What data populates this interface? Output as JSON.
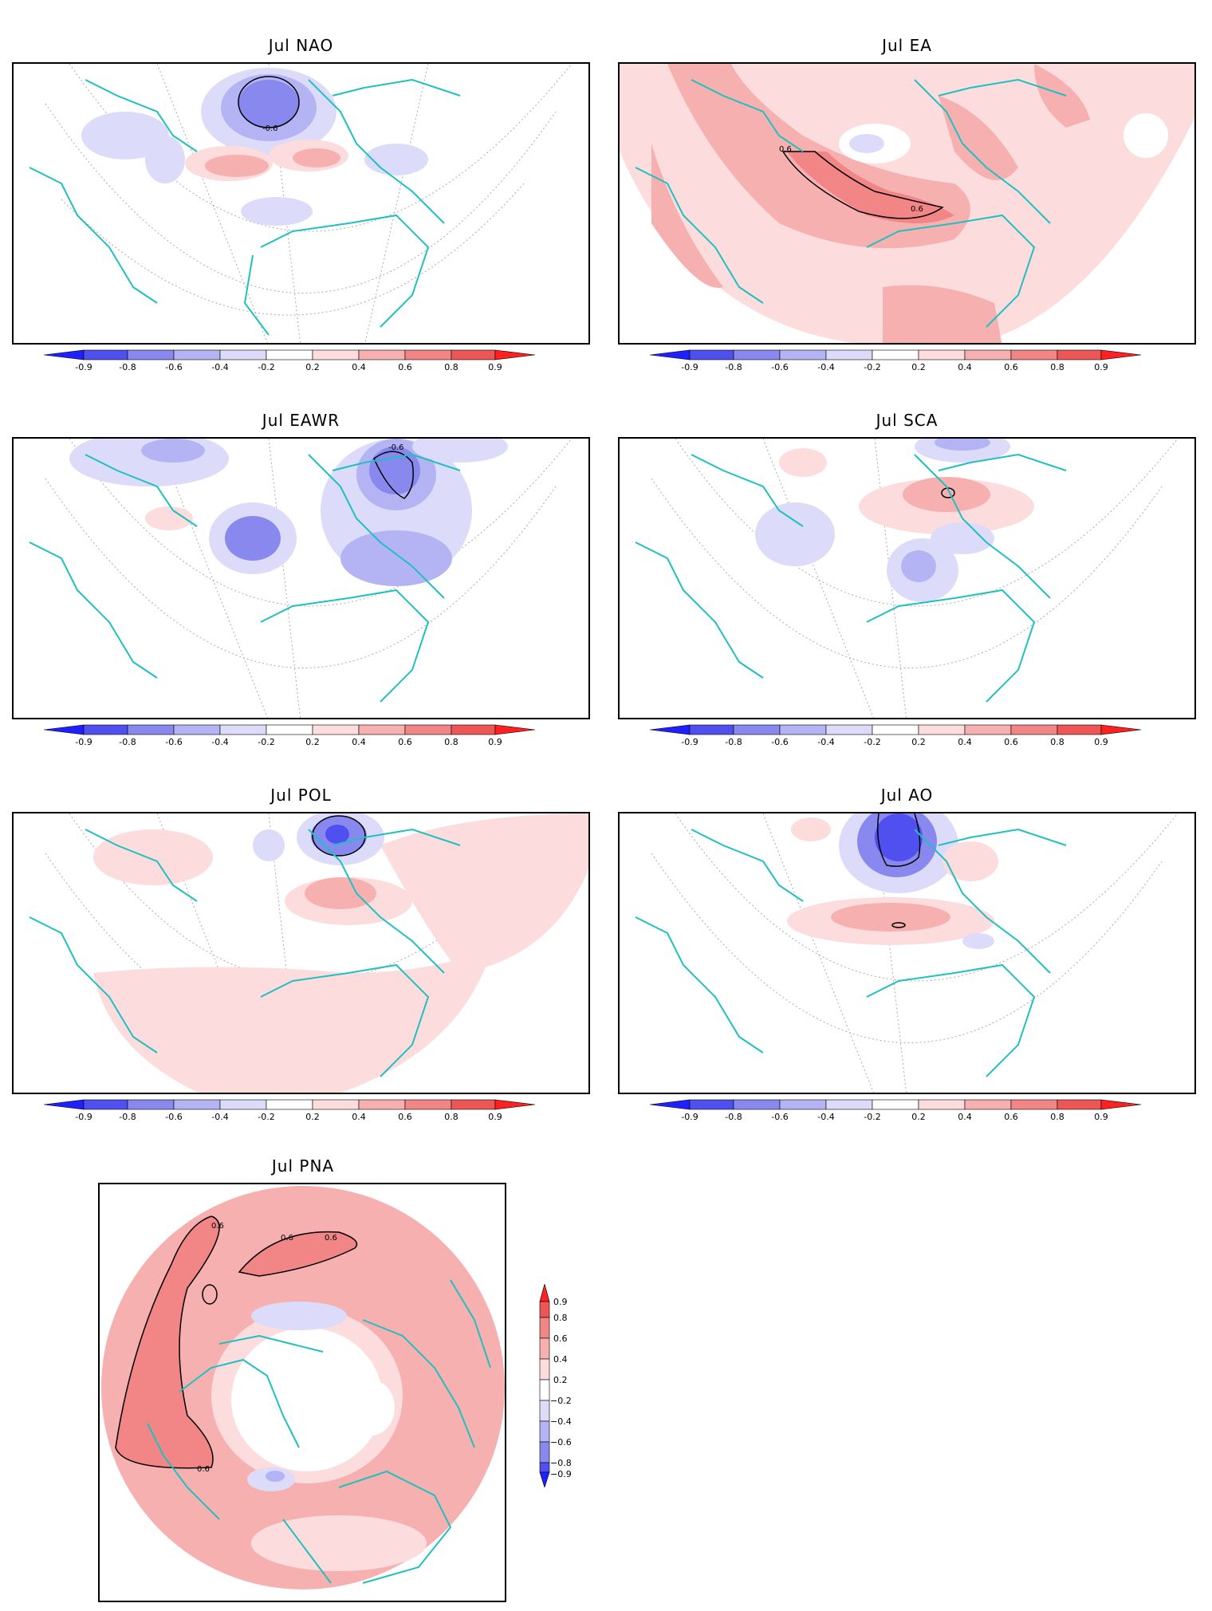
{
  "figure": {
    "panels": [
      {
        "id": "nao",
        "title": "Jul NAO",
        "contour_labels": [
          "-0.6"
        ],
        "background": "white"
      },
      {
        "id": "ea",
        "title": "Jul EA",
        "contour_labels": [
          "0.6",
          "0.6"
        ],
        "background": "pink"
      },
      {
        "id": "eawr",
        "title": "Jul EAWR",
        "contour_labels": [
          "-0.6"
        ],
        "background": "white"
      },
      {
        "id": "sca",
        "title": "Jul SCA",
        "contour_labels": [],
        "background": "white"
      },
      {
        "id": "pol",
        "title": "Jul POL",
        "contour_labels": [],
        "background": "white"
      },
      {
        "id": "ao",
        "title": "Jul AO",
        "contour_labels": [],
        "background": "white"
      },
      {
        "id": "pna",
        "title": "Jul PNA",
        "contour_labels": [
          "0.6",
          "0.6",
          "0.6",
          "0.6"
        ],
        "background": "salmon"
      }
    ],
    "colorbar": {
      "labels": [
        "-0.9",
        "-0.8",
        "-0.6",
        "-0.4",
        "-0.2",
        "0.2",
        "0.4",
        "0.6",
        "0.8",
        "0.9"
      ],
      "vertical_labels": [
        "0.9",
        "0.8",
        "0.6",
        "0.4",
        "0.2",
        "−0.2",
        "−0.4",
        "−0.6",
        "−0.8",
        "−0.9"
      ],
      "colors": [
        "#2020ff",
        "#5050f0",
        "#8888ee",
        "#b4b4f5",
        "#dcdcfa",
        "#ffffff",
        "#fcdcdc",
        "#f7b0b0",
        "#f28585",
        "#ee5555",
        "#ff2020"
      ]
    },
    "colors": {
      "coast": "#20c0c0",
      "grid": "#aaaaaa",
      "blue1": "#dcdcfa",
      "blue2": "#b4b4f5",
      "blue3": "#8888ee",
      "blue4": "#5050f0",
      "red1": "#fcdcdc",
      "red2": "#f7b0b0",
      "red3": "#f28585",
      "red4": "#ee5555"
    }
  }
}
